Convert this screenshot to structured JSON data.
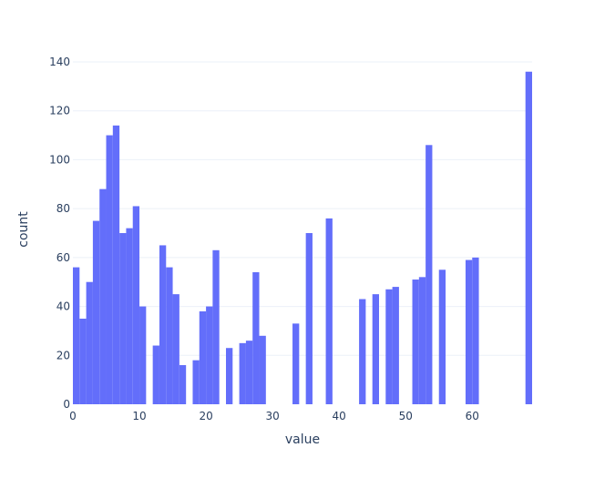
{
  "chart_data": {
    "type": "bar",
    "title": "",
    "xlabel": "value",
    "ylabel": "count",
    "bin_width": 1,
    "xlim": [
      0,
      69
    ],
    "ylim": [
      0,
      140
    ],
    "grid": true,
    "bar_color": "#636efa",
    "x_ticks": [
      0,
      10,
      20,
      30,
      40,
      50,
      60
    ],
    "y_ticks": [
      0,
      20,
      40,
      60,
      80,
      100,
      120,
      140
    ],
    "bins": [
      {
        "x": 0,
        "count": 56
      },
      {
        "x": 1,
        "count": 35
      },
      {
        "x": 2,
        "count": 50
      },
      {
        "x": 3,
        "count": 75
      },
      {
        "x": 4,
        "count": 88
      },
      {
        "x": 5,
        "count": 110
      },
      {
        "x": 6,
        "count": 114
      },
      {
        "x": 7,
        "count": 70
      },
      {
        "x": 8,
        "count": 72
      },
      {
        "x": 9,
        "count": 81
      },
      {
        "x": 10,
        "count": 40
      },
      {
        "x": 12,
        "count": 24
      },
      {
        "x": 13,
        "count": 65
      },
      {
        "x": 14,
        "count": 56
      },
      {
        "x": 15,
        "count": 45
      },
      {
        "x": 16,
        "count": 16
      },
      {
        "x": 18,
        "count": 18
      },
      {
        "x": 19,
        "count": 38
      },
      {
        "x": 20,
        "count": 40
      },
      {
        "x": 21,
        "count": 63
      },
      {
        "x": 23,
        "count": 23
      },
      {
        "x": 25,
        "count": 25
      },
      {
        "x": 26,
        "count": 26
      },
      {
        "x": 27,
        "count": 54
      },
      {
        "x": 28,
        "count": 28
      },
      {
        "x": 33,
        "count": 33
      },
      {
        "x": 35,
        "count": 70
      },
      {
        "x": 38,
        "count": 76
      },
      {
        "x": 43,
        "count": 43
      },
      {
        "x": 45,
        "count": 45
      },
      {
        "x": 47,
        "count": 47
      },
      {
        "x": 48,
        "count": 48
      },
      {
        "x": 51,
        "count": 51
      },
      {
        "x": 52,
        "count": 52
      },
      {
        "x": 53,
        "count": 106
      },
      {
        "x": 55,
        "count": 55
      },
      {
        "x": 59,
        "count": 59
      },
      {
        "x": 60,
        "count": 60
      },
      {
        "x": 68,
        "count": 136
      }
    ]
  }
}
